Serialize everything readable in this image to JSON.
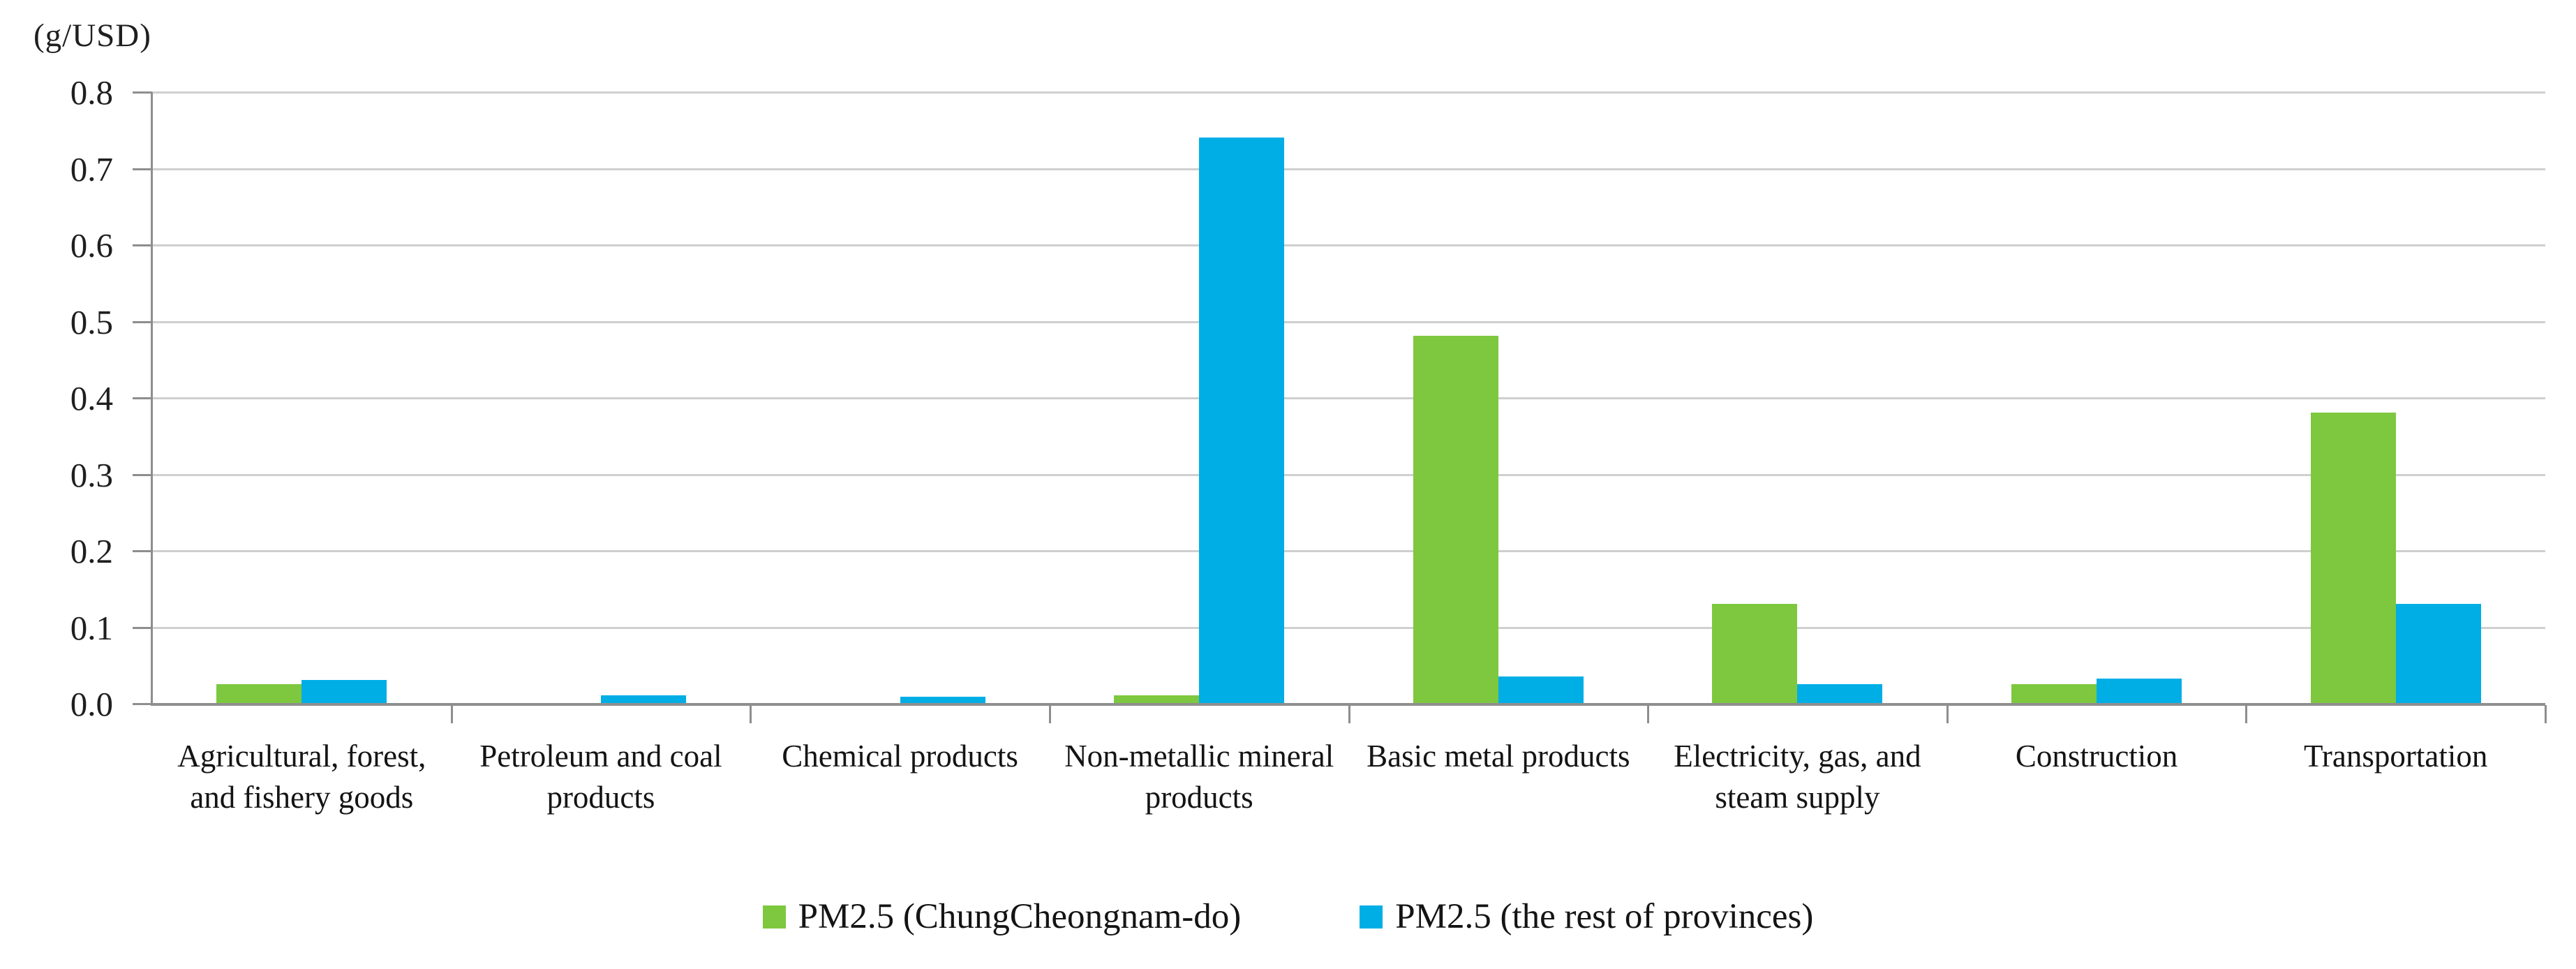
{
  "chart_data": {
    "type": "bar",
    "title": "",
    "ylabel": "(g/USD)",
    "xlabel": "",
    "ylim": [
      0,
      0.8
    ],
    "yticks": [
      "0.0",
      "0.1",
      "0.2",
      "0.3",
      "0.4",
      "0.5",
      "0.6",
      "0.7",
      "0.8"
    ],
    "grid": true,
    "legend_position": "bottom-center",
    "categories": [
      "Agricultural, forest, and fishery goods",
      "Petroleum and coal products",
      "Chemical products",
      "Non-metallic mineral products",
      "Basic metal products",
      "Electricity, gas, and steam supply",
      "Construction",
      "Transportation"
    ],
    "series": [
      {
        "name": "PM2.5 (ChungCheongnam-do)",
        "color": "#7DC83E",
        "values": [
          0.025,
          0,
          0,
          0.01,
          0.48,
          0.13,
          0.025,
          0.38
        ]
      },
      {
        "name": "PM2.5 (the rest of provinces)",
        "color": "#00AEE6",
        "values": [
          0.03,
          0.01,
          0.008,
          0.74,
          0.035,
          0.025,
          0.032,
          0.13
        ]
      }
    ],
    "colors": {
      "gridline": "#CFCFCF",
      "axis": "#8E8E8E",
      "text": "#1F1F1F",
      "background": "#FFFFFF"
    }
  }
}
